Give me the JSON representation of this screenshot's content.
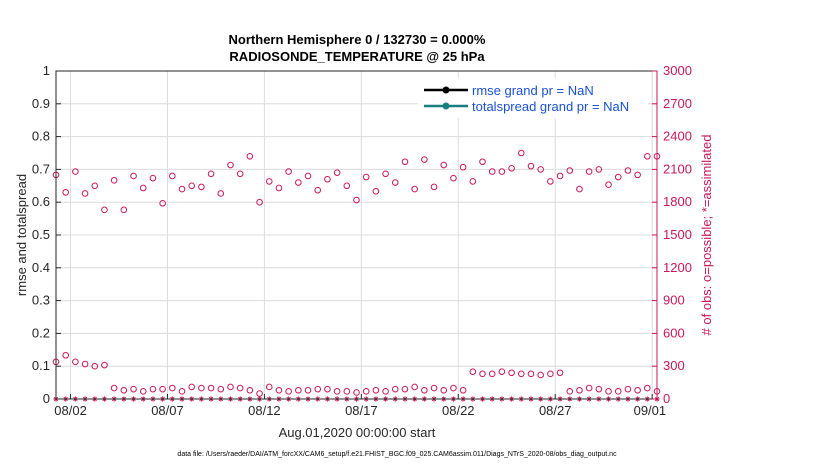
{
  "chart_data": {
    "type": "scatter",
    "title": "Northern Hemisphere 0 / 132730 = 0.000%",
    "subtitle": "RADIOSONDE_TEMPERATURE @ 25 hPa",
    "xlabel": "Aug.01,2020 00:00:00 start",
    "ylabel_left": "rmse and totalspread",
    "ylabel_right": "# of obs: o=possible; *=assimilated",
    "x_tick_labels": [
      "08/02",
      "08/07",
      "08/12",
      "08/17",
      "08/22",
      "08/27",
      "09/01"
    ],
    "x_tick_days": [
      1,
      6,
      11,
      16,
      21,
      26,
      31
    ],
    "xlim": [
      0.25,
      31.25
    ],
    "ylim_left": [
      0,
      1
    ],
    "y_ticks_left": [
      "0",
      "0.1",
      "0.2",
      "0.3",
      "0.4",
      "0.5",
      "0.6",
      "0.7",
      "0.8",
      "0.9",
      "1"
    ],
    "ylim_right": [
      0,
      3000
    ],
    "y_ticks_right": [
      "0",
      "300",
      "600",
      "900",
      "1200",
      "1500",
      "1800",
      "2100",
      "2400",
      "2700",
      "3000"
    ],
    "grid": true,
    "legend_position": "top-right",
    "legend": [
      {
        "name": "rmse grand pr = NaN",
        "color": "#000000"
      },
      {
        "name": "totalspread grand pr = NaN",
        "color": "#1b7e7e"
      }
    ],
    "series": [
      {
        "name": "possible (upper cluster)",
        "axis": "right",
        "marker": "o",
        "color": "#c8185a",
        "x_days": [
          0.25,
          0.75,
          1.25,
          1.75,
          2.25,
          2.75,
          3.25,
          3.75,
          4.25,
          4.75,
          5.25,
          5.75,
          6.25,
          6.75,
          7.25,
          7.75,
          8.25,
          8.75,
          9.25,
          9.75,
          10.25,
          10.75,
          11.25,
          11.75,
          12.25,
          12.75,
          13.25,
          13.75,
          14.25,
          14.75,
          15.25,
          15.75,
          16.25,
          16.75,
          17.25,
          17.75,
          18.25,
          18.75,
          19.25,
          19.75,
          20.25,
          20.75,
          21.25,
          21.75,
          22.25,
          22.75,
          23.25,
          23.75,
          24.25,
          24.75,
          25.25,
          25.75,
          26.25,
          26.75,
          27.25,
          27.75,
          28.25,
          28.75,
          29.25,
          29.75,
          30.25,
          30.75,
          31.25
        ],
        "values": [
          2050,
          1890,
          2080,
          1880,
          1950,
          1730,
          2000,
          1730,
          2040,
          1930,
          2020,
          1790,
          2040,
          1920,
          1950,
          1940,
          2060,
          1880,
          2140,
          2060,
          2220,
          1800,
          1990,
          1930,
          2080,
          1980,
          2040,
          1910,
          2010,
          2070,
          1950,
          1820,
          2030,
          1900,
          2060,
          1980,
          2170,
          1920,
          2190,
          1940,
          2140,
          2020,
          2120,
          1990,
          2170,
          2080,
          2080,
          2110,
          2250,
          2130,
          2100,
          1990,
          2040,
          2090,
          1920,
          2080,
          2100,
          1960,
          2030,
          2090,
          2050,
          2220,
          2220
        ]
      },
      {
        "name": "possible (lower cluster)",
        "axis": "right",
        "marker": "o",
        "color": "#c8185a",
        "x_days": [
          0.25,
          0.75,
          1.25,
          1.75,
          2.25,
          2.75,
          3.25,
          3.75,
          4.25,
          4.75,
          5.25,
          5.75,
          6.25,
          6.75,
          7.25,
          7.75,
          8.25,
          8.75,
          9.25,
          9.75,
          10.25,
          10.75,
          11.25,
          11.75,
          12.25,
          12.75,
          13.25,
          13.75,
          14.25,
          14.75,
          15.25,
          15.75,
          16.25,
          16.75,
          17.25,
          17.75,
          18.25,
          18.75,
          19.25,
          19.75,
          20.25,
          20.75,
          21.25,
          21.75,
          22.25,
          22.75,
          23.25,
          23.75,
          24.25,
          24.75,
          25.25,
          25.75,
          26.25,
          26.75,
          27.25,
          27.75,
          28.25,
          28.75,
          29.25,
          29.75,
          30.25,
          30.75,
          31.25
        ],
        "values": [
          340,
          400,
          340,
          320,
          300,
          310,
          100,
          80,
          90,
          70,
          90,
          90,
          100,
          70,
          110,
          100,
          100,
          90,
          110,
          100,
          80,
          50,
          110,
          80,
          70,
          80,
          80,
          90,
          90,
          70,
          70,
          60,
          70,
          80,
          70,
          90,
          90,
          110,
          80,
          100,
          80,
          100,
          80,
          250,
          230,
          230,
          250,
          240,
          230,
          230,
          220,
          230,
          240,
          70,
          80,
          100,
          90,
          70,
          70,
          90,
          80,
          100,
          70
        ]
      },
      {
        "name": "assimilated",
        "axis": "right",
        "marker": "*",
        "color": "#c8185a",
        "x_days": [
          0.25,
          0.75,
          1.25,
          1.75,
          2.25,
          2.75,
          3.25,
          3.75,
          4.25,
          4.75,
          5.25,
          5.75,
          6.25,
          6.75,
          7.25,
          7.75,
          8.25,
          8.75,
          9.25,
          9.75,
          10.25,
          10.75,
          11.25,
          11.75,
          12.25,
          12.75,
          13.25,
          13.75,
          14.25,
          14.75,
          15.25,
          15.75,
          16.25,
          16.75,
          17.25,
          17.75,
          18.25,
          18.75,
          19.25,
          19.75,
          20.25,
          20.75,
          21.25,
          21.75,
          22.25,
          22.75,
          23.25,
          23.75,
          24.25,
          24.75,
          25.25,
          25.75,
          26.25,
          26.75,
          27.25,
          27.75,
          28.25,
          28.75,
          29.25,
          29.75,
          30.25,
          30.75,
          31.25
        ],
        "values": [
          0,
          0,
          0,
          0,
          0,
          0,
          0,
          0,
          0,
          0,
          0,
          0,
          0,
          0,
          0,
          0,
          0,
          0,
          0,
          0,
          0,
          0,
          0,
          0,
          0,
          0,
          0,
          0,
          0,
          0,
          0,
          0,
          0,
          0,
          0,
          0,
          0,
          0,
          0,
          0,
          0,
          0,
          0,
          0,
          0,
          0,
          0,
          0,
          0,
          0,
          0,
          0,
          0,
          0,
          0,
          0,
          0,
          0,
          0,
          0,
          0,
          0,
          0
        ]
      }
    ]
  },
  "footer": "data file: /Users/raeder/DAI/ATM_forcXX/CAM6_setup/f.e21.FHIST_BGC.f09_025.CAM6assim.011/Diags_NTrS_2020-08/obs_diag_output.nc"
}
